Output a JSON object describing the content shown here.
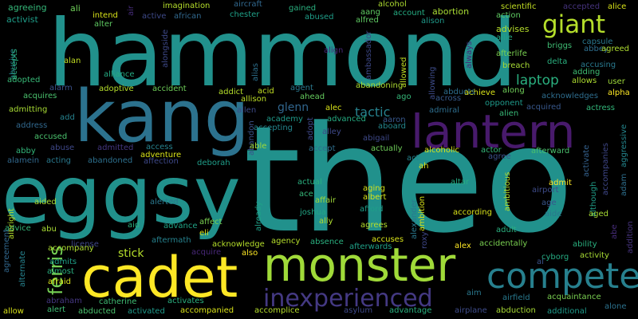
{
  "words": [
    {
      "text": "theo",
      "color": "#21918c"
    },
    {
      "text": "hammond",
      "color": "#21918c"
    },
    {
      "text": "eggsy",
      "color": "#21918c"
    },
    {
      "text": "kang",
      "color": "#2c728e"
    },
    {
      "text": "lantern",
      "color": "#481a6c"
    },
    {
      "text": "monster",
      "color": "#a0da39"
    },
    {
      "text": "cadet",
      "color": "#fde725"
    },
    {
      "text": "compete",
      "color": "#27808e"
    },
    {
      "text": "inexperienced",
      "color": "#443983"
    },
    {
      "text": "giant",
      "color": "#b5de2b"
    },
    {
      "text": "ferris",
      "color": "#75d054"
    },
    {
      "text": "laptop",
      "color": "#2ab07f"
    },
    {
      "text": "tactic",
      "color": "#26828e"
    },
    {
      "text": "glenn",
      "color": "#31668e"
    },
    {
      "text": "stick",
      "color": "#b5de2b"
    },
    {
      "text": "agreeing",
      "color": "#35b779"
    },
    {
      "text": "activist",
      "color": "#1f9e89"
    },
    {
      "text": "abusive",
      "color": "#26828e"
    },
    {
      "text": "accepts",
      "color": "#2ab07f"
    },
    {
      "text": "ali",
      "color": "#6ece58"
    },
    {
      "text": "intend",
      "color": "#d8e219"
    },
    {
      "text": "alter",
      "color": "#5ec962"
    },
    {
      "text": "air",
      "color": "#472d7b"
    },
    {
      "text": "active",
      "color": "#3e4a89"
    },
    {
      "text": "african",
      "color": "#31688e"
    },
    {
      "text": "imagination",
      "color": "#b5de2b"
    },
    {
      "text": "aircraft",
      "color": "#31688e"
    },
    {
      "text": "chester",
      "color": "#1fa188"
    },
    {
      "text": "gained",
      "color": "#2ab07f"
    },
    {
      "text": "abused",
      "color": "#1f9e89"
    },
    {
      "text": "alcohol",
      "color": "#addc30"
    },
    {
      "text": "aang",
      "color": "#5ec962"
    },
    {
      "text": "alfred",
      "color": "#5ec962"
    },
    {
      "text": "account",
      "color": "#25ac82"
    },
    {
      "text": "abortion",
      "color": "#a8db34"
    },
    {
      "text": "alison",
      "color": "#1f9a8a"
    },
    {
      "text": "scientific",
      "color": "#c2df23"
    },
    {
      "text": "accepted",
      "color": "#46337e"
    },
    {
      "text": "alice",
      "color": "#d8e219"
    },
    {
      "text": "action",
      "color": "#5ec962"
    },
    {
      "text": "advises",
      "color": "#b5de2b"
    },
    {
      "text": "allie",
      "color": "#22a785"
    },
    {
      "text": "abbey",
      "color": "#2e6f8e"
    },
    {
      "text": "agreed",
      "color": "#addc30"
    },
    {
      "text": "capsule",
      "color": "#2a788e"
    },
    {
      "text": "afterlife",
      "color": "#7ad151"
    },
    {
      "text": "breach",
      "color": "#a8db34"
    },
    {
      "text": "briggs",
      "color": "#3fbc73"
    },
    {
      "text": "delta",
      "color": "#2ab07f"
    },
    {
      "text": "accusing",
      "color": "#29798e"
    },
    {
      "text": "adding",
      "color": "#3fbc73"
    },
    {
      "text": "allows",
      "color": "#addc30"
    },
    {
      "text": "user",
      "color": "#9fda3a"
    },
    {
      "text": "alpha",
      "color": "#fde725"
    },
    {
      "text": "acknowledges",
      "color": "#2e6d8e"
    },
    {
      "text": "actress",
      "color": "#32b67a"
    },
    {
      "text": "alamein",
      "color": "#31688e"
    },
    {
      "text": "along",
      "color": "#6ece58"
    },
    {
      "text": "acquired",
      "color": "#38588c"
    },
    {
      "text": "alien",
      "color": "#38b977"
    },
    {
      "text": "achieve",
      "color": "#d8e219"
    },
    {
      "text": "opponent",
      "color": "#1f9a8a"
    },
    {
      "text": "aggressive",
      "color": "#24868e"
    },
    {
      "text": "alan",
      "color": "#c2df23"
    },
    {
      "text": "adopted",
      "color": "#38b977"
    },
    {
      "text": "alarm",
      "color": "#3b518b"
    },
    {
      "text": "adoptive",
      "color": "#b5de2b"
    },
    {
      "text": "accident",
      "color": "#6ece58"
    },
    {
      "text": "alliance",
      "color": "#25ab82"
    },
    {
      "text": "alongside",
      "color": "#3e4989"
    },
    {
      "text": "alias",
      "color": "#2d708e"
    },
    {
      "text": "align",
      "color": "#482878"
    },
    {
      "text": "ambassador",
      "color": "#3e4989"
    },
    {
      "text": "allowed",
      "color": "#c2df23"
    },
    {
      "text": "allowing",
      "color": "#3e4c8a"
    },
    {
      "text": "always",
      "color": "#482677"
    },
    {
      "text": "addict",
      "color": "#b5de2b"
    },
    {
      "text": "acid",
      "color": "#c2df23"
    },
    {
      "text": "agent",
      "color": "#2a788e"
    },
    {
      "text": "ahead",
      "color": "#65cb5e"
    },
    {
      "text": "abandoning",
      "color": "#addc30"
    },
    {
      "text": "abducts",
      "color": "#2e6e8e"
    },
    {
      "text": "across",
      "color": "#375a8c"
    },
    {
      "text": "ago",
      "color": "#35b779"
    },
    {
      "text": "allison",
      "color": "#bddf26"
    },
    {
      "text": "acquires",
      "color": "#4ac16d"
    },
    {
      "text": "admitting",
      "color": "#a8db34"
    },
    {
      "text": "address",
      "color": "#31688e"
    },
    {
      "text": "add",
      "color": "#26828e"
    },
    {
      "text": "accused",
      "color": "#4ac16d"
    },
    {
      "text": "abuse",
      "color": "#3f4889"
    },
    {
      "text": "admitted",
      "color": "#453781"
    },
    {
      "text": "access",
      "color": "#26828e"
    },
    {
      "text": "adventure",
      "color": "#d8e219"
    },
    {
      "text": "affection",
      "color": "#3e4989"
    },
    {
      "text": "abandoned",
      "color": "#2d708e"
    },
    {
      "text": "deborah",
      "color": "#1f9e89"
    },
    {
      "text": "abby",
      "color": "#32b67a"
    },
    {
      "text": "acting",
      "color": "#29798e"
    },
    {
      "text": "allen",
      "color": "#3e4c8a"
    },
    {
      "text": "academy",
      "color": "#1f9a8a"
    },
    {
      "text": "accepting",
      "color": "#24868e"
    },
    {
      "text": "alec",
      "color": "#d8e219"
    },
    {
      "text": "advanced",
      "color": "#25ac82"
    },
    {
      "text": "admiral",
      "color": "#2e6e8e"
    },
    {
      "text": "abandon",
      "color": "#3b528b"
    },
    {
      "text": "adopt",
      "color": "#3f4788"
    },
    {
      "text": "alley",
      "color": "#3e4989"
    },
    {
      "text": "abigail",
      "color": "#3e4989"
    },
    {
      "text": "aboard",
      "color": "#24878e"
    },
    {
      "text": "aaron",
      "color": "#38588c"
    },
    {
      "text": "able",
      "color": "#a0da39"
    },
    {
      "text": "accept",
      "color": "#2e6f8e"
    },
    {
      "text": "actually",
      "color": "#6ece58"
    },
    {
      "text": "alcoholic",
      "color": "#d8e219"
    },
    {
      "text": "actor",
      "color": "#35b779"
    },
    {
      "text": "afterward",
      "color": "#4ac16d"
    },
    {
      "text": "agree",
      "color": "#3b518b"
    },
    {
      "text": "activate",
      "color": "#34618d"
    },
    {
      "text": "accompanies",
      "color": "#3f4889"
    },
    {
      "text": "adam",
      "color": "#2e6f8e"
    },
    {
      "text": "act",
      "color": "#26828e"
    },
    {
      "text": "ah",
      "color": "#d8e219"
    },
    {
      "text": "actual",
      "color": "#2ab07f"
    },
    {
      "text": "altar",
      "color": "#25ac82"
    },
    {
      "text": "ace",
      "color": "#35b779"
    },
    {
      "text": "affair",
      "color": "#a0da39"
    },
    {
      "text": "aging",
      "color": "#d8e219"
    },
    {
      "text": "albert",
      "color": "#d8e219"
    },
    {
      "text": "ambitious",
      "color": "#b5de2b"
    },
    {
      "text": "admit",
      "color": "#fde725"
    },
    {
      "text": "airport",
      "color": "#3e4c8a"
    },
    {
      "text": "although",
      "color": "#1f9e89"
    },
    {
      "text": "aided",
      "color": "#a8db34"
    },
    {
      "text": "alerted",
      "color": "#2a788e"
    },
    {
      "text": "already",
      "color": "#1fa188"
    },
    {
      "text": "joshua",
      "color": "#22a785"
    },
    {
      "text": "ally",
      "color": "#addc30"
    },
    {
      "text": "afford",
      "color": "#1f9e89"
    },
    {
      "text": "alexander",
      "color": "#2a788e"
    },
    {
      "text": "ambition",
      "color": "#d8e219"
    },
    {
      "text": "according",
      "color": "#d8e219"
    },
    {
      "text": "age",
      "color": "#39568c"
    },
    {
      "text": "aide",
      "color": "#2a788e"
    },
    {
      "text": "aged",
      "color": "#a8db34"
    },
    {
      "text": "advice",
      "color": "#35b779"
    },
    {
      "text": "abu",
      "color": "#a8db34"
    },
    {
      "text": "aid",
      "color": "#2ab07f"
    },
    {
      "text": "advance",
      "color": "#20a386"
    },
    {
      "text": "affect",
      "color": "#7ad151"
    },
    {
      "text": "agrees",
      "color": "#b5de2b"
    },
    {
      "text": "adult",
      "color": "#2ab07f"
    },
    {
      "text": "abe",
      "color": "#472d7b"
    },
    {
      "text": "albright",
      "color": "#b5de2b"
    },
    {
      "text": "agreement",
      "color": "#31688e"
    },
    {
      "text": "license",
      "color": "#3f4889"
    },
    {
      "text": "aftermath",
      "color": "#26828e"
    },
    {
      "text": "acquire",
      "color": "#482878"
    },
    {
      "text": "eli",
      "color": "#d8e219"
    },
    {
      "text": "acknowledge",
      "color": "#b5de2b"
    },
    {
      "text": "agency",
      "color": "#b5de2b"
    },
    {
      "text": "absence",
      "color": "#2ab07f"
    },
    {
      "text": "accuses",
      "color": "#d8e219"
    },
    {
      "text": "afterwards",
      "color": "#1fa188"
    },
    {
      "text": "roxy",
      "color": "#3f4889"
    },
    {
      "text": "alex",
      "color": "#fde725"
    },
    {
      "text": "accidentally",
      "color": "#7ad151"
    },
    {
      "text": "ability",
      "color": "#2ab07f"
    },
    {
      "text": "addition",
      "color": "#46337e"
    },
    {
      "text": "accompany",
      "color": "#addc30"
    },
    {
      "text": "also",
      "color": "#fde725"
    },
    {
      "text": "al",
      "color": "#3b528b"
    },
    {
      "text": "cyborg",
      "color": "#25ab82"
    },
    {
      "text": "activity",
      "color": "#a8db34"
    },
    {
      "text": "admits",
      "color": "#1fa188"
    },
    {
      "text": "almost",
      "color": "#2ab07f"
    },
    {
      "text": "afraid",
      "color": "#d8e219"
    },
    {
      "text": "alternate",
      "color": "#26828e"
    },
    {
      "text": "abraham",
      "color": "#453781"
    },
    {
      "text": "catherine",
      "color": "#3fbc73"
    },
    {
      "text": "activates",
      "color": "#2ab07f"
    },
    {
      "text": "alert",
      "color": "#3fbc73"
    },
    {
      "text": "abducted",
      "color": "#4ac16d"
    },
    {
      "text": "activated",
      "color": "#1f9a8a"
    },
    {
      "text": "accompanied",
      "color": "#d8e219"
    },
    {
      "text": "accomplice",
      "color": "#b5de2b"
    },
    {
      "text": "asylum",
      "color": "#3e4989"
    },
    {
      "text": "advantage",
      "color": "#2ab07f"
    },
    {
      "text": "airplane",
      "color": "#3e4c8a"
    },
    {
      "text": "aim",
      "color": "#2a788e"
    },
    {
      "text": "airfield",
      "color": "#29798e"
    },
    {
      "text": "abduction",
      "color": "#a8db34"
    },
    {
      "text": "acquaintance",
      "color": "#7ad151"
    },
    {
      "text": "alone",
      "color": "#2c728e"
    },
    {
      "text": "additional",
      "color": "#1f9a8a"
    },
    {
      "text": "allow",
      "color": "#d8e219"
    }
  ]
}
